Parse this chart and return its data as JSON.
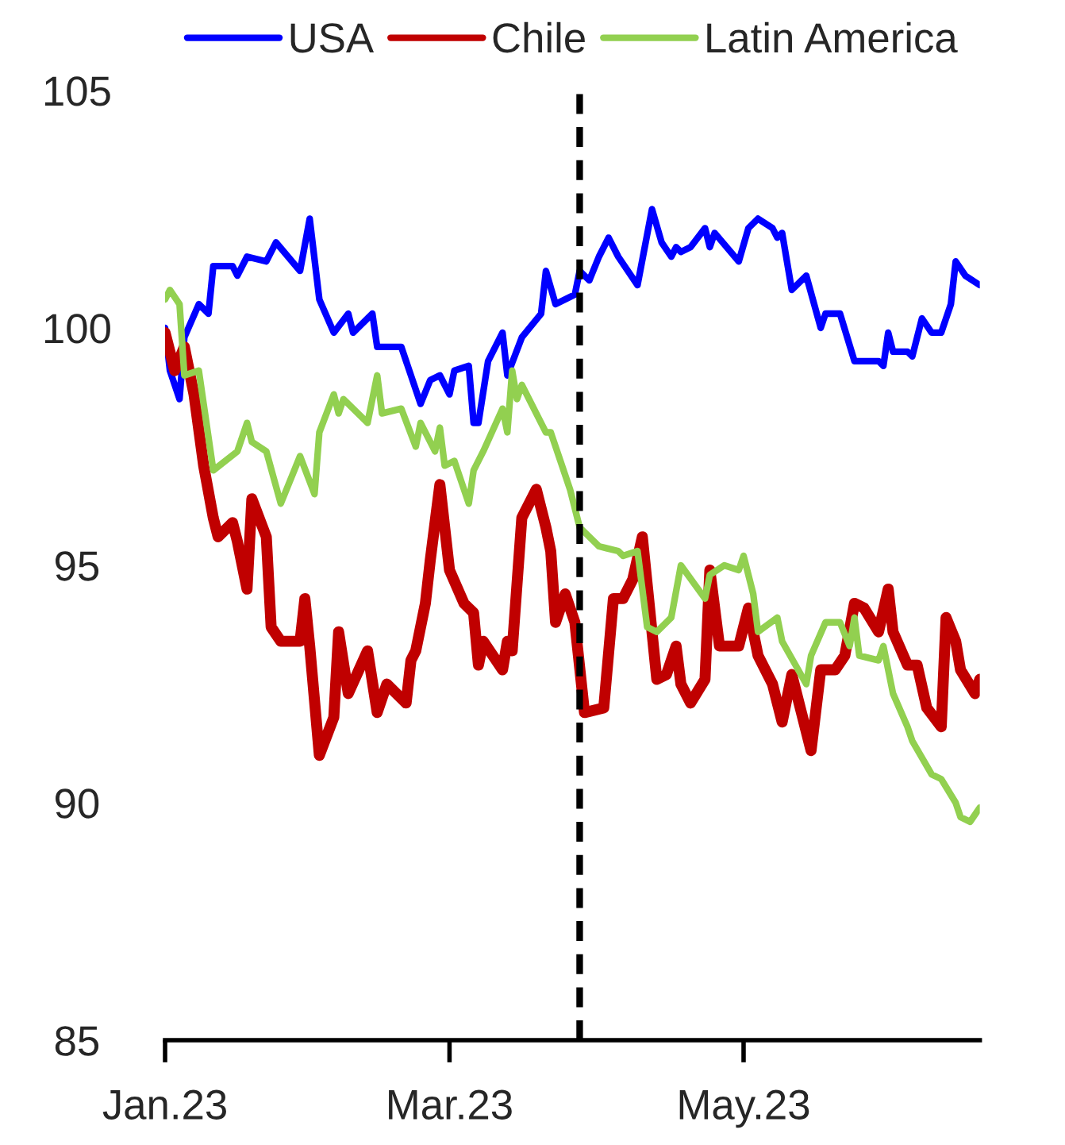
{
  "chart_data": {
    "type": "line",
    "xlim": [
      "2023-01-01",
      "2023-06-19"
    ],
    "xticks": [
      {
        "value": "2023-01-01",
        "label": "Jan.23"
      },
      {
        "value": "2023-03-01",
        "label": "Mar.23"
      },
      {
        "value": "2023-05-01",
        "label": "May.23"
      }
    ],
    "ylim": [
      85,
      105
    ],
    "yticks": [
      85,
      90,
      95,
      100,
      105
    ],
    "grid": false,
    "legend": "top",
    "marker": "none",
    "line_style": "solid",
    "ref_lines": [
      {
        "axis": "x",
        "value": "2023-03-28",
        "color": "#000000",
        "line_style": "dashed"
      }
    ],
    "series": [
      {
        "name": "USA",
        "color": "#0000ff",
        "x": [
          "2023-01-01",
          "2023-01-02",
          "2023-01-04",
          "2023-01-05",
          "2023-01-08",
          "2023-01-10",
          "2023-01-11",
          "2023-01-15",
          "2023-01-16",
          "2023-01-18",
          "2023-01-22",
          "2023-01-24",
          "2023-01-29",
          "2023-01-31",
          "2023-02-02",
          "2023-02-05",
          "2023-02-08",
          "2023-02-09",
          "2023-02-13",
          "2023-02-14",
          "2023-02-19",
          "2023-02-21",
          "2023-02-23",
          "2023-02-25",
          "2023-02-27",
          "2023-03-01",
          "2023-03-02",
          "2023-03-05",
          "2023-03-06",
          "2023-03-07",
          "2023-03-09",
          "2023-03-12",
          "2023-03-13",
          "2023-03-16",
          "2023-03-20",
          "2023-03-21",
          "2023-03-23",
          "2023-03-27",
          "2023-03-28",
          "2023-03-30",
          "2023-04-01",
          "2023-04-03",
          "2023-04-05",
          "2023-04-09",
          "2023-04-12",
          "2023-04-14",
          "2023-04-16",
          "2023-04-17",
          "2023-04-18",
          "2023-04-20",
          "2023-04-23",
          "2023-04-24",
          "2023-04-25",
          "2023-04-30",
          "2023-05-02",
          "2023-05-04",
          "2023-05-07",
          "2023-05-08",
          "2023-05-09",
          "2023-05-11",
          "2023-05-14",
          "2023-05-17",
          "2023-05-18",
          "2023-05-21",
          "2023-05-24",
          "2023-05-29",
          "2023-05-30",
          "2023-05-31",
          "2023-06-01",
          "2023-06-04",
          "2023-06-05",
          "2023-06-07",
          "2023-06-09",
          "2023-06-11",
          "2023-06-13",
          "2023-06-14",
          "2023-06-16",
          "2023-06-19"
        ],
        "values": [
          100.0,
          99.1,
          98.5,
          99.8,
          100.5,
          100.3,
          101.3,
          101.3,
          101.1,
          101.5,
          101.4,
          101.8,
          101.2,
          102.3,
          100.6,
          99.9,
          100.3,
          99.9,
          100.3,
          99.6,
          99.6,
          99.0,
          98.4,
          98.9,
          99.0,
          98.6,
          99.1,
          99.2,
          98.0,
          98.0,
          99.3,
          99.9,
          99.0,
          99.8,
          100.3,
          101.2,
          100.5,
          100.7,
          101.2,
          101.0,
          101.5,
          101.9,
          101.5,
          100.9,
          102.5,
          101.8,
          101.5,
          101.7,
          101.6,
          101.7,
          102.1,
          101.7,
          102.0,
          101.4,
          102.1,
          102.3,
          102.1,
          101.9,
          102.0,
          100.8,
          101.1,
          100.0,
          100.3,
          100.3,
          99.3,
          99.3,
          99.2,
          99.9,
          99.5,
          99.5,
          99.4,
          100.2,
          99.9,
          99.9,
          100.5,
          101.4,
          101.1,
          100.9
        ]
      },
      {
        "name": "Chile",
        "color": "#c00000",
        "x": [
          "2023-01-01",
          "2023-01-03",
          "2023-01-05",
          "2023-01-07",
          "2023-01-09",
          "2023-01-11",
          "2023-01-12",
          "2023-01-15",
          "2023-01-16",
          "2023-01-18",
          "2023-01-19",
          "2023-01-22",
          "2023-01-23",
          "2023-01-25",
          "2023-01-29",
          "2023-01-30",
          "2023-01-31",
          "2023-02-02",
          "2023-02-05",
          "2023-02-06",
          "2023-02-08",
          "2023-02-12",
          "2023-02-14",
          "2023-02-16",
          "2023-02-20",
          "2023-02-21",
          "2023-02-22",
          "2023-02-24",
          "2023-02-25",
          "2023-02-27",
          "2023-03-01",
          "2023-03-04",
          "2023-03-06",
          "2023-03-07",
          "2023-03-08",
          "2023-03-12",
          "2023-03-13",
          "2023-03-14",
          "2023-03-16",
          "2023-03-19",
          "2023-03-21",
          "2023-03-22",
          "2023-03-23",
          "2023-03-25",
          "2023-03-27",
          "2023-03-29",
          "2023-04-02",
          "2023-04-04",
          "2023-04-06",
          "2023-04-08",
          "2023-04-10",
          "2023-04-13",
          "2023-04-15",
          "2023-04-17",
          "2023-04-18",
          "2023-04-20",
          "2023-04-23",
          "2023-04-24",
          "2023-04-26",
          "2023-04-30",
          "2023-05-02",
          "2023-05-04",
          "2023-05-07",
          "2023-05-09",
          "2023-05-11",
          "2023-05-15",
          "2023-05-17",
          "2023-05-20",
          "2023-05-22",
          "2023-05-24",
          "2023-05-26",
          "2023-05-29",
          "2023-05-31",
          "2023-06-01",
          "2023-06-04",
          "2023-06-06",
          "2023-06-08",
          "2023-06-11",
          "2023-06-12",
          "2023-06-14",
          "2023-06-15",
          "2023-06-18",
          "2023-06-19"
        ],
        "values": [
          99.9,
          99.1,
          99.6,
          98.6,
          97.1,
          96.0,
          95.6,
          95.9,
          95.5,
          94.5,
          96.4,
          95.6,
          93.7,
          93.4,
          93.4,
          94.3,
          93.3,
          91.0,
          91.8,
          93.6,
          92.3,
          93.2,
          91.9,
          92.5,
          92.1,
          93.0,
          93.2,
          94.2,
          95.1,
          96.7,
          94.9,
          94.2,
          94.0,
          92.9,
          93.4,
          92.8,
          93.4,
          93.2,
          96.0,
          96.6,
          95.8,
          95.3,
          93.8,
          94.4,
          93.8,
          91.9,
          92.0,
          94.3,
          94.3,
          94.7,
          95.6,
          92.6,
          92.7,
          93.3,
          92.5,
          92.1,
          92.6,
          94.9,
          93.3,
          93.3,
          94.1,
          93.1,
          92.5,
          91.7,
          92.7,
          91.1,
          92.8,
          92.8,
          93.1,
          94.2,
          94.1,
          93.6,
          94.5,
          93.6,
          92.9,
          92.9,
          92.0,
          91.6,
          93.9,
          93.4,
          92.8,
          92.3,
          92.6
        ]
      },
      {
        "name": "Latin America",
        "color": "#92d050",
        "x": [
          "2023-01-01",
          "2023-01-02",
          "2023-01-04",
          "2023-01-05",
          "2023-01-08",
          "2023-01-11",
          "2023-01-16",
          "2023-01-18",
          "2023-01-19",
          "2023-01-22",
          "2023-01-25",
          "2023-01-29",
          "2023-02-01",
          "2023-02-02",
          "2023-02-05",
          "2023-02-06",
          "2023-02-07",
          "2023-02-12",
          "2023-02-14",
          "2023-02-15",
          "2023-02-19",
          "2023-02-22",
          "2023-02-23",
          "2023-02-26",
          "2023-02-27",
          "2023-02-28",
          "2023-03-02",
          "2023-03-05",
          "2023-03-06",
          "2023-03-08",
          "2023-03-12",
          "2023-03-13",
          "2023-03-14",
          "2023-03-15",
          "2023-03-16",
          "2023-03-21",
          "2023-03-22",
          "2023-03-24",
          "2023-03-26",
          "2023-03-28",
          "2023-04-01",
          "2023-04-05",
          "2023-04-06",
          "2023-04-09",
          "2023-04-11",
          "2023-04-13",
          "2023-04-16",
          "2023-04-18",
          "2023-04-23",
          "2023-04-24",
          "2023-04-27",
          "2023-04-30",
          "2023-05-01",
          "2023-05-03",
          "2023-05-04",
          "2023-05-08",
          "2023-05-09",
          "2023-05-14",
          "2023-05-15",
          "2023-05-18",
          "2023-05-21",
          "2023-05-23",
          "2023-05-24",
          "2023-05-25",
          "2023-05-29",
          "2023-05-30",
          "2023-06-01",
          "2023-06-04",
          "2023-06-05",
          "2023-06-09",
          "2023-06-11",
          "2023-06-14",
          "2023-06-15",
          "2023-06-17",
          "2023-06-19"
        ],
        "values": [
          100.6,
          100.8,
          100.5,
          99.0,
          99.1,
          97.0,
          97.4,
          98.0,
          97.6,
          97.4,
          96.3,
          97.3,
          96.5,
          97.8,
          98.6,
          98.2,
          98.5,
          98.0,
          99.0,
          98.2,
          98.3,
          97.5,
          98.0,
          97.4,
          97.9,
          97.1,
          97.2,
          96.3,
          97.0,
          97.4,
          98.3,
          97.8,
          99.1,
          98.5,
          98.8,
          97.8,
          97.8,
          97.2,
          96.6,
          95.8,
          95.4,
          95.3,
          95.2,
          95.3,
          93.7,
          93.6,
          93.9,
          95.0,
          94.3,
          94.8,
          95.0,
          94.9,
          95.2,
          94.4,
          93.6,
          93.9,
          93.4,
          92.5,
          93.1,
          93.8,
          93.8,
          93.3,
          93.9,
          93.1,
          93.0,
          93.3,
          92.3,
          91.6,
          91.3,
          90.6,
          90.5,
          90.0,
          89.7,
          89.6,
          89.9
        ]
      }
    ]
  }
}
